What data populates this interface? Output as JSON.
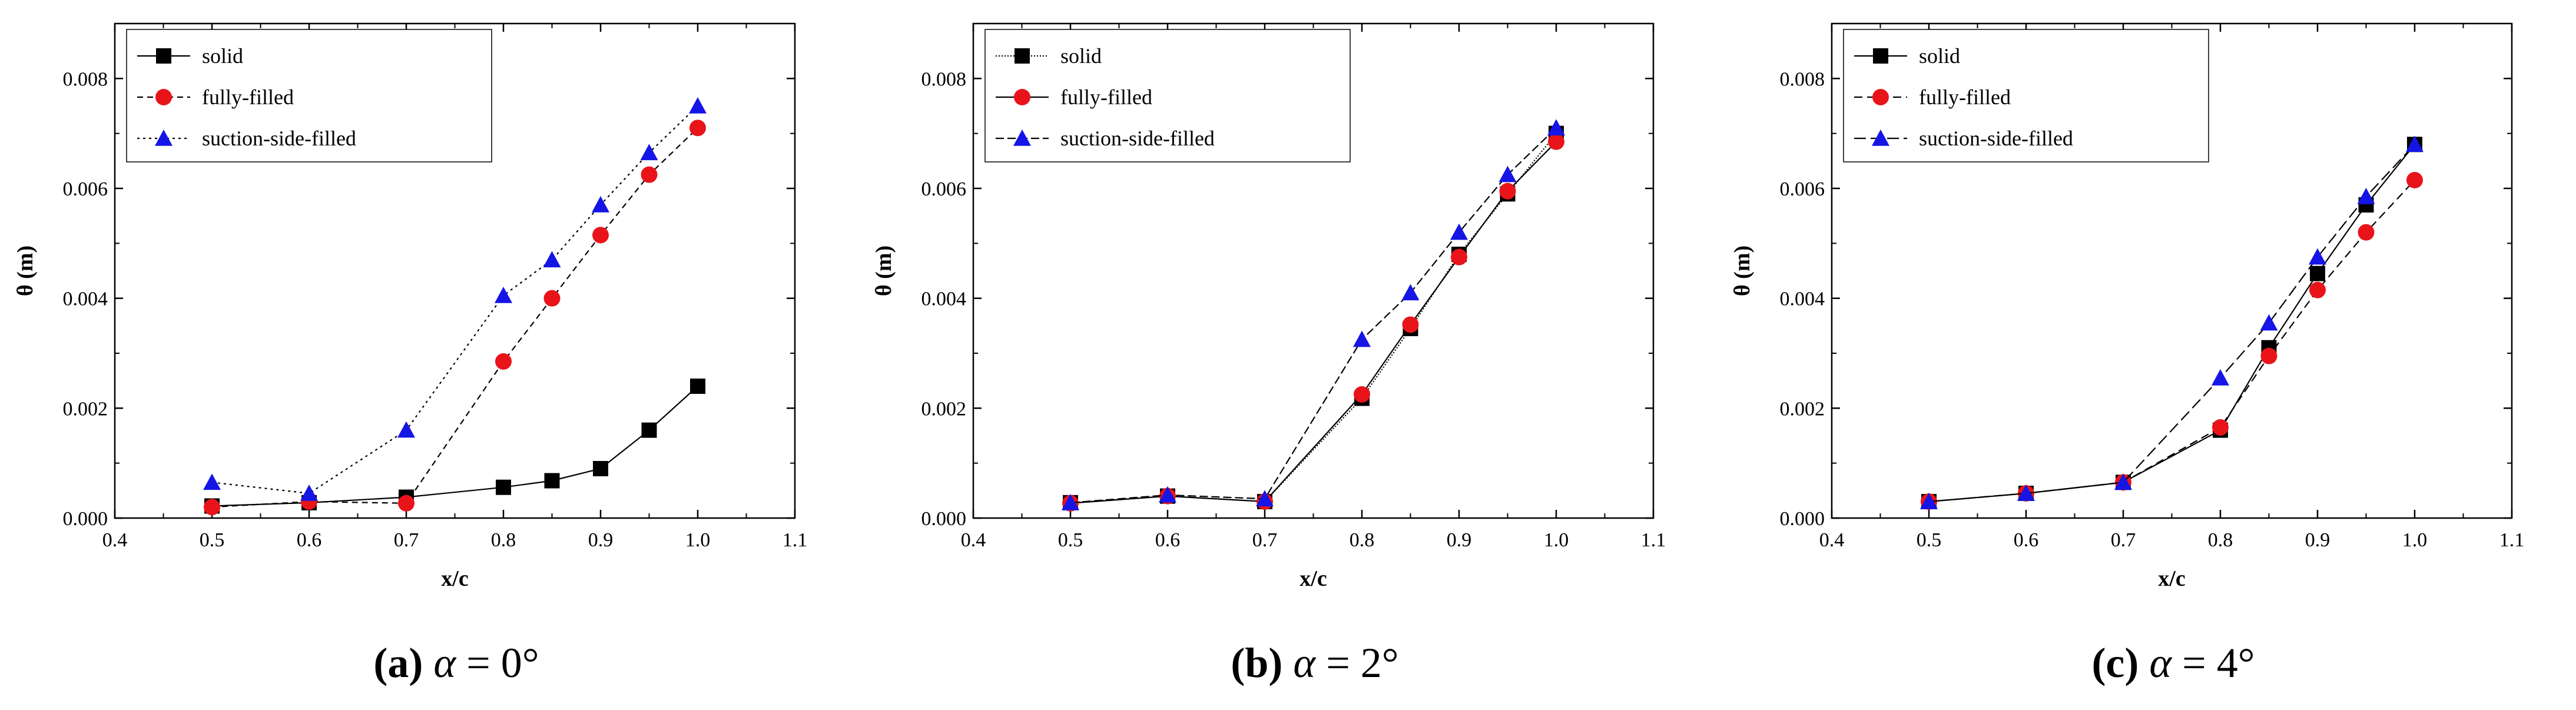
{
  "figure": {
    "colors": {
      "solid": "#000000",
      "fully": "#e8141a",
      "suction": "#1515e6",
      "axis": "#000000"
    },
    "series_names": [
      "solid",
      "fully-filled",
      "suction-side-filled"
    ]
  },
  "chart_data": [
    {
      "type": "line",
      "caption": {
        "label": "(a)",
        "symbol": "α",
        "rest": " = 0°"
      },
      "xlabel": "x/c",
      "ylabel": "θ (m)",
      "xlim": [
        0.4,
        1.1
      ],
      "ylim": [
        0.0,
        0.009
      ],
      "xticks": [
        "0.4",
        "0.5",
        "0.6",
        "0.7",
        "0.8",
        "0.9",
        "1.0",
        "1.1"
      ],
      "yticks": [
        "0.000",
        "0.002",
        "0.004",
        "0.006",
        "0.008"
      ],
      "x": [
        0.5,
        0.6,
        0.7,
        0.8,
        0.85,
        0.9,
        0.95,
        1.0
      ],
      "legend": "top-left",
      "series": [
        {
          "name": "solid",
          "marker": "square",
          "values": [
            0.00022,
            0.00028,
            0.00038,
            0.00056,
            0.00068,
            0.0009,
            0.0016,
            0.0024
          ]
        },
        {
          "name": "fully-filled",
          "marker": "circle",
          "values": [
            0.0002,
            0.0003,
            0.00027,
            0.00285,
            0.004,
            0.00515,
            0.00625,
            0.0071
          ]
        },
        {
          "name": "suction-side-filled",
          "marker": "triangle",
          "values": [
            0.00065,
            0.00045,
            0.0016,
            0.00405,
            0.0047,
            0.0057,
            0.00665,
            0.0075
          ]
        }
      ]
    },
    {
      "type": "line",
      "caption": {
        "label": "(b)",
        "symbol": "α",
        "rest": " = 2°"
      },
      "xlabel": "x/c",
      "ylabel": "θ (m)",
      "xlim": [
        0.4,
        1.1
      ],
      "ylim": [
        0.0,
        0.009
      ],
      "xticks": [
        "0.4",
        "0.5",
        "0.6",
        "0.7",
        "0.8",
        "0.9",
        "1.0",
        "1.1"
      ],
      "yticks": [
        "0.000",
        "0.002",
        "0.004",
        "0.006",
        "0.008"
      ],
      "x": [
        0.5,
        0.6,
        0.7,
        0.8,
        0.85,
        0.9,
        0.95,
        1.0
      ],
      "legend": "top-left",
      "series": [
        {
          "name": "solid",
          "marker": "square",
          "values": [
            0.00028,
            0.0004,
            0.0003,
            0.00218,
            0.00345,
            0.0048,
            0.0059,
            0.007
          ]
        },
        {
          "name": "fully-filled",
          "marker": "circle",
          "values": [
            0.00027,
            0.0004,
            0.0003,
            0.00225,
            0.00352,
            0.00475,
            0.00595,
            0.00685
          ]
        },
        {
          "name": "suction-side-filled",
          "marker": "triangle",
          "values": [
            0.00028,
            0.00042,
            0.00035,
            0.00325,
            0.0041,
            0.0052,
            0.00625,
            0.0071
          ]
        }
      ]
    },
    {
      "type": "line",
      "caption": {
        "label": "(c)",
        "symbol": "α",
        "rest": " = 4°"
      },
      "xlabel": "x/c",
      "ylabel": "θ (m)",
      "xlim": [
        0.4,
        1.1
      ],
      "ylim": [
        0.0,
        0.009
      ],
      "xticks": [
        "0.4",
        "0.5",
        "0.6",
        "0.7",
        "0.8",
        "0.9",
        "1.0",
        "1.1"
      ],
      "yticks": [
        "0.000",
        "0.002",
        "0.004",
        "0.006",
        "0.008"
      ],
      "x": [
        0.5,
        0.6,
        0.7,
        0.8,
        0.85,
        0.9,
        0.95,
        1.0
      ],
      "legend": "top-left",
      "series": [
        {
          "name": "solid",
          "marker": "square",
          "values": [
            0.0003,
            0.00045,
            0.00065,
            0.0016,
            0.0031,
            0.00445,
            0.0057,
            0.0068
          ]
        },
        {
          "name": "fully-filled",
          "marker": "circle",
          "values": [
            0.0003,
            0.00045,
            0.00065,
            0.00165,
            0.00295,
            0.00415,
            0.0052,
            0.00615
          ]
        },
        {
          "name": "suction-side-filled",
          "marker": "triangle",
          "values": [
            0.0003,
            0.00045,
            0.00065,
            0.00255,
            0.00355,
            0.00475,
            0.00585,
            0.0068
          ]
        }
      ]
    }
  ]
}
